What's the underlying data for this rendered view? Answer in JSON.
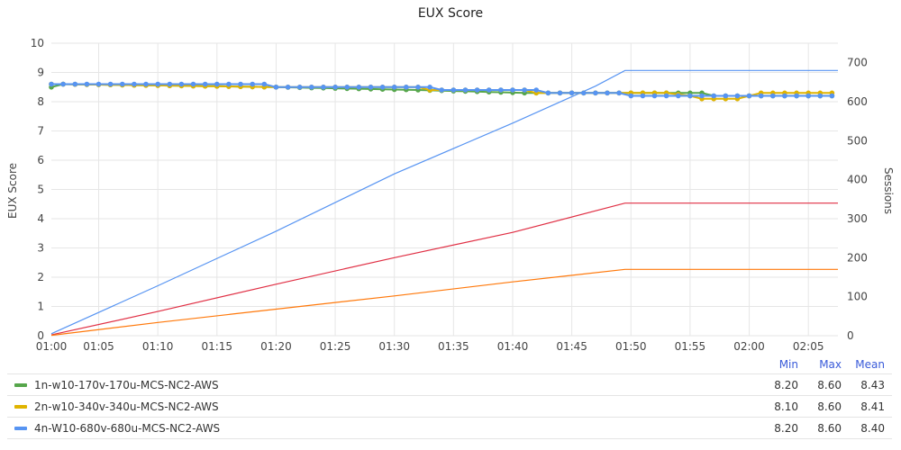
{
  "chart_data": {
    "type": "line",
    "title": "EUX Score",
    "ylabel": "EUX Score",
    "y2label": "Sessions",
    "ylim": [
      0,
      10
    ],
    "y2lim": [
      0,
      750
    ],
    "yticks": [
      "0",
      "1",
      "2",
      "3",
      "4",
      "5",
      "6",
      "7",
      "8",
      "9",
      "10"
    ],
    "y2ticks": [
      "0",
      "100",
      "200",
      "300",
      "400",
      "500",
      "600",
      "700"
    ],
    "xrange_minutes": [
      61,
      127.5
    ],
    "xticks": [
      "01:00",
      "01:05",
      "01:10",
      "01:15",
      "01:20",
      "01:25",
      "01:30",
      "01:35",
      "01:40",
      "01:45",
      "01:50",
      "01:55",
      "02:00",
      "02:05"
    ],
    "xtick_minutes": [
      60,
      65,
      70,
      75,
      80,
      85,
      90,
      95,
      100,
      105,
      110,
      115,
      120,
      125
    ],
    "grid": true,
    "legend_placement": "bottom",
    "eux_series": [
      {
        "name": "1n-w10-170v-170u-MCS-NC2-AWS",
        "color": "#56a64b",
        "points": [
          [
            61,
            8.5
          ],
          [
            62,
            8.6
          ],
          [
            80,
            8.5
          ],
          [
            92,
            8.4
          ],
          [
            101,
            8.3
          ],
          [
            116,
            8.3
          ],
          [
            117,
            8.2
          ],
          [
            127.5,
            8.2
          ]
        ]
      },
      {
        "name": "2n-w10-340v-340u-MCS-NC2-AWS",
        "color": "#e0b400",
        "points": [
          [
            61,
            8.6
          ],
          [
            62,
            8.6
          ],
          [
            80,
            8.5
          ],
          [
            92,
            8.5
          ],
          [
            93,
            8.4
          ],
          [
            101,
            8.4
          ],
          [
            102,
            8.3
          ],
          [
            113,
            8.3
          ],
          [
            115,
            8.2
          ],
          [
            116,
            8.1
          ],
          [
            119,
            8.1
          ],
          [
            120,
            8.2
          ],
          [
            121,
            8.3
          ],
          [
            127.5,
            8.3
          ]
        ]
      },
      {
        "name": "4n-W10-680v-680u-MCS-NC2-AWS",
        "color": "#5794f2",
        "points": [
          [
            61,
            8.6
          ],
          [
            79,
            8.6
          ],
          [
            80,
            8.5
          ],
          [
            93,
            8.5
          ],
          [
            94,
            8.4
          ],
          [
            102,
            8.4
          ],
          [
            103,
            8.3
          ],
          [
            109,
            8.3
          ],
          [
            110,
            8.2
          ],
          [
            127.5,
            8.2
          ]
        ]
      }
    ],
    "session_series": [
      {
        "color": "#5794f2",
        "points": [
          [
            61,
            5
          ],
          [
            70,
            128
          ],
          [
            80,
            268
          ],
          [
            90,
            415
          ],
          [
            100,
            545
          ],
          [
            107,
            640
          ],
          [
            109.5,
            680
          ],
          [
            127.5,
            680
          ]
        ]
      },
      {
        "color": "#e02f44",
        "points": [
          [
            61,
            2
          ],
          [
            70,
            62
          ],
          [
            80,
            132
          ],
          [
            90,
            200
          ],
          [
            100,
            265
          ],
          [
            109.5,
            340
          ],
          [
            127.5,
            340
          ]
        ]
      },
      {
        "color": "#ff780a",
        "points": [
          [
            61,
            1
          ],
          [
            70,
            34
          ],
          [
            80,
            68
          ],
          [
            90,
            102
          ],
          [
            100,
            138
          ],
          [
            109.5,
            170
          ],
          [
            127.5,
            170
          ]
        ]
      }
    ]
  },
  "legend": {
    "headers": {
      "min": "Min",
      "max": "Max",
      "mean": "Mean"
    },
    "rows": [
      {
        "name": "1n-w10-170v-170u-MCS-NC2-AWS",
        "color": "#56a64b",
        "min": "8.20",
        "max": "8.60",
        "mean": "8.43"
      },
      {
        "name": "2n-w10-340v-340u-MCS-NC2-AWS",
        "color": "#e0b400",
        "min": "8.10",
        "max": "8.60",
        "mean": "8.41"
      },
      {
        "name": "4n-W10-680v-680u-MCS-NC2-AWS",
        "color": "#5794f2",
        "min": "8.20",
        "max": "8.60",
        "mean": "8.40"
      }
    ]
  }
}
